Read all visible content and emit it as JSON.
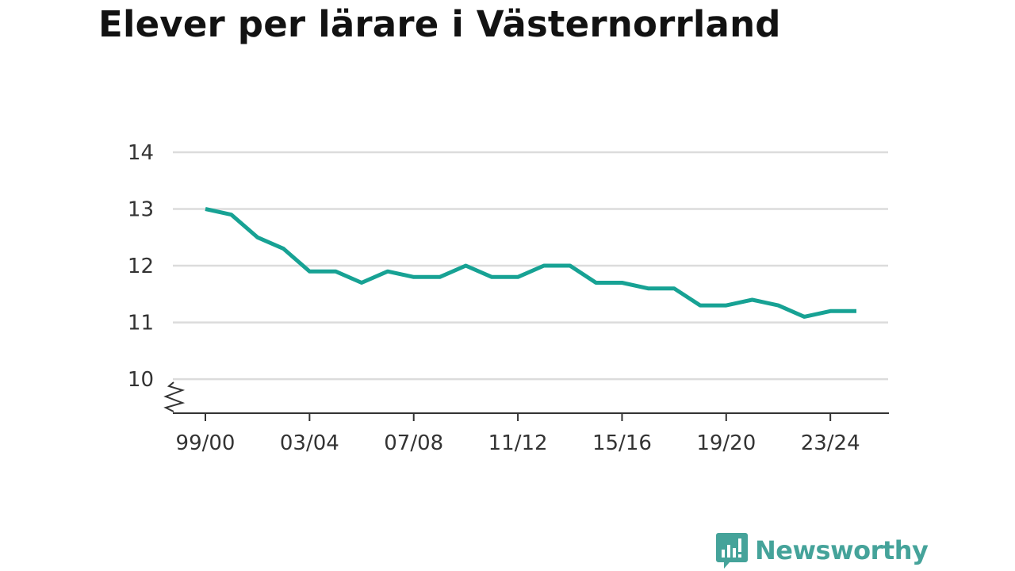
{
  "title": "Elever per lärare i Västernorrland",
  "brand": {
    "name": "Newsworthy",
    "color": "#45a39a"
  },
  "colors": {
    "line": "#17a294",
    "grid": "#dcdcdc",
    "axis": "#333333",
    "text": "#333333"
  },
  "chart_data": {
    "type": "line",
    "title": "Elever per lärare i Västernorrland",
    "xlabel": "",
    "ylabel": "",
    "x": [
      "99/00",
      "00/01",
      "01/02",
      "02/03",
      "03/04",
      "04/05",
      "05/06",
      "06/07",
      "07/08",
      "08/09",
      "09/10",
      "10/11",
      "11/12",
      "12/13",
      "13/14",
      "14/15",
      "15/16",
      "16/17",
      "17/18",
      "18/19",
      "19/20",
      "20/21",
      "21/22",
      "22/23",
      "23/24",
      "24/25"
    ],
    "x_tick_labels": [
      "99/00",
      "03/04",
      "07/08",
      "11/12",
      "15/16",
      "19/20",
      "23/24"
    ],
    "series": [
      {
        "values": [
          13.0,
          12.9,
          12.5,
          12.3,
          11.9,
          11.9,
          11.7,
          11.9,
          11.8,
          11.8,
          12.0,
          11.8,
          11.8,
          12.0,
          12.0,
          11.7,
          11.7,
          11.6,
          11.6,
          11.3,
          11.3,
          11.4,
          11.3,
          11.1,
          11.2,
          11.2
        ]
      }
    ],
    "y_ticks": [
      10,
      11,
      12,
      13,
      14
    ],
    "ylim": [
      9.4,
      14
    ],
    "y_axis_break": true,
    "grid": true,
    "legend": "none"
  }
}
